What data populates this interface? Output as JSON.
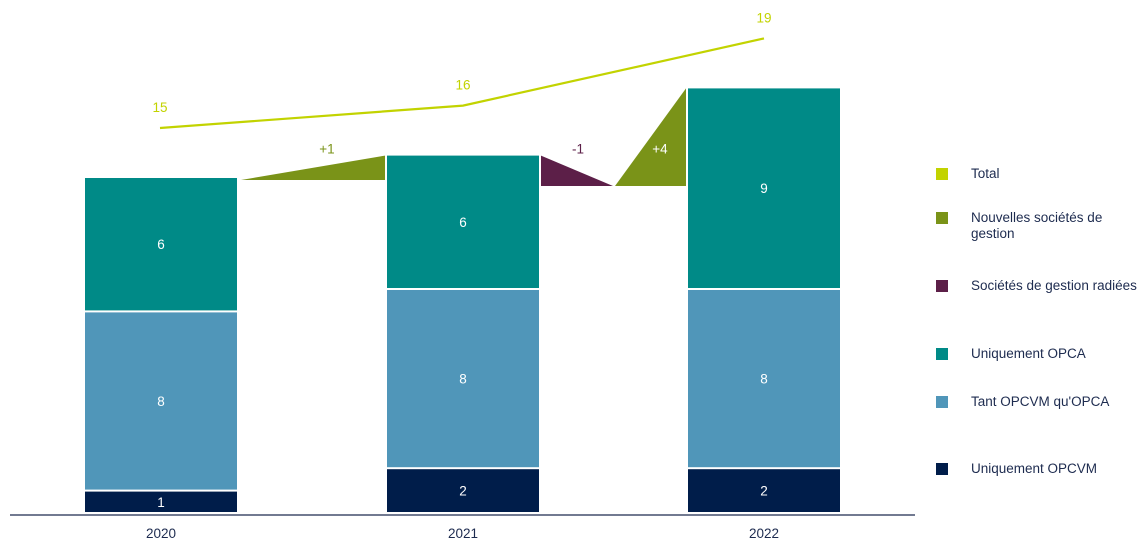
{
  "chart_data": {
    "type": "bar",
    "stacked": true,
    "categories": [
      "2020",
      "2021",
      "2022"
    ],
    "series": [
      {
        "name": "Uniquement OPCVM",
        "values": [
          1,
          2,
          2
        ],
        "color": "#001d4a"
      },
      {
        "name": "Tant OPCVM qu'OPCA",
        "values": [
          8,
          8,
          8
        ],
        "color": "#5096b9"
      },
      {
        "name": "Uniquement OPCA",
        "values": [
          6,
          6,
          9
        ],
        "color": "#008a87"
      }
    ],
    "total": {
      "name": "Total",
      "values": [
        15,
        16,
        19
      ],
      "color": "#c2d300"
    },
    "transitions": [
      {
        "label": "+1",
        "series": "Nouvelles sociétés de gestion",
        "from": "2020",
        "to": "2021"
      },
      {
        "label": "-1",
        "series": "Sociétés de gestion radiées",
        "from": "2021",
        "to": "2022"
      },
      {
        "label": "+4",
        "series": "Nouvelles sociétés de gestion",
        "from": "2021",
        "to": "2022"
      }
    ],
    "legend": {
      "position": "right",
      "items": [
        {
          "label": "Total",
          "color": "#c2d300"
        },
        {
          "label": "Nouvelles sociétés de gestion",
          "color": "#7a9318"
        },
        {
          "label": "Sociétés de gestion radiées",
          "color": "#5c1f48"
        },
        {
          "label": "Uniquement OPCA",
          "color": "#008a87"
        },
        {
          "label": "Tant OPCVM qu'OPCA",
          "color": "#5096b9"
        },
        {
          "label": "Uniquement OPCVM",
          "color": "#001d4a"
        }
      ]
    },
    "title": "",
    "xlabel": "",
    "ylabel": "",
    "grid": false
  }
}
